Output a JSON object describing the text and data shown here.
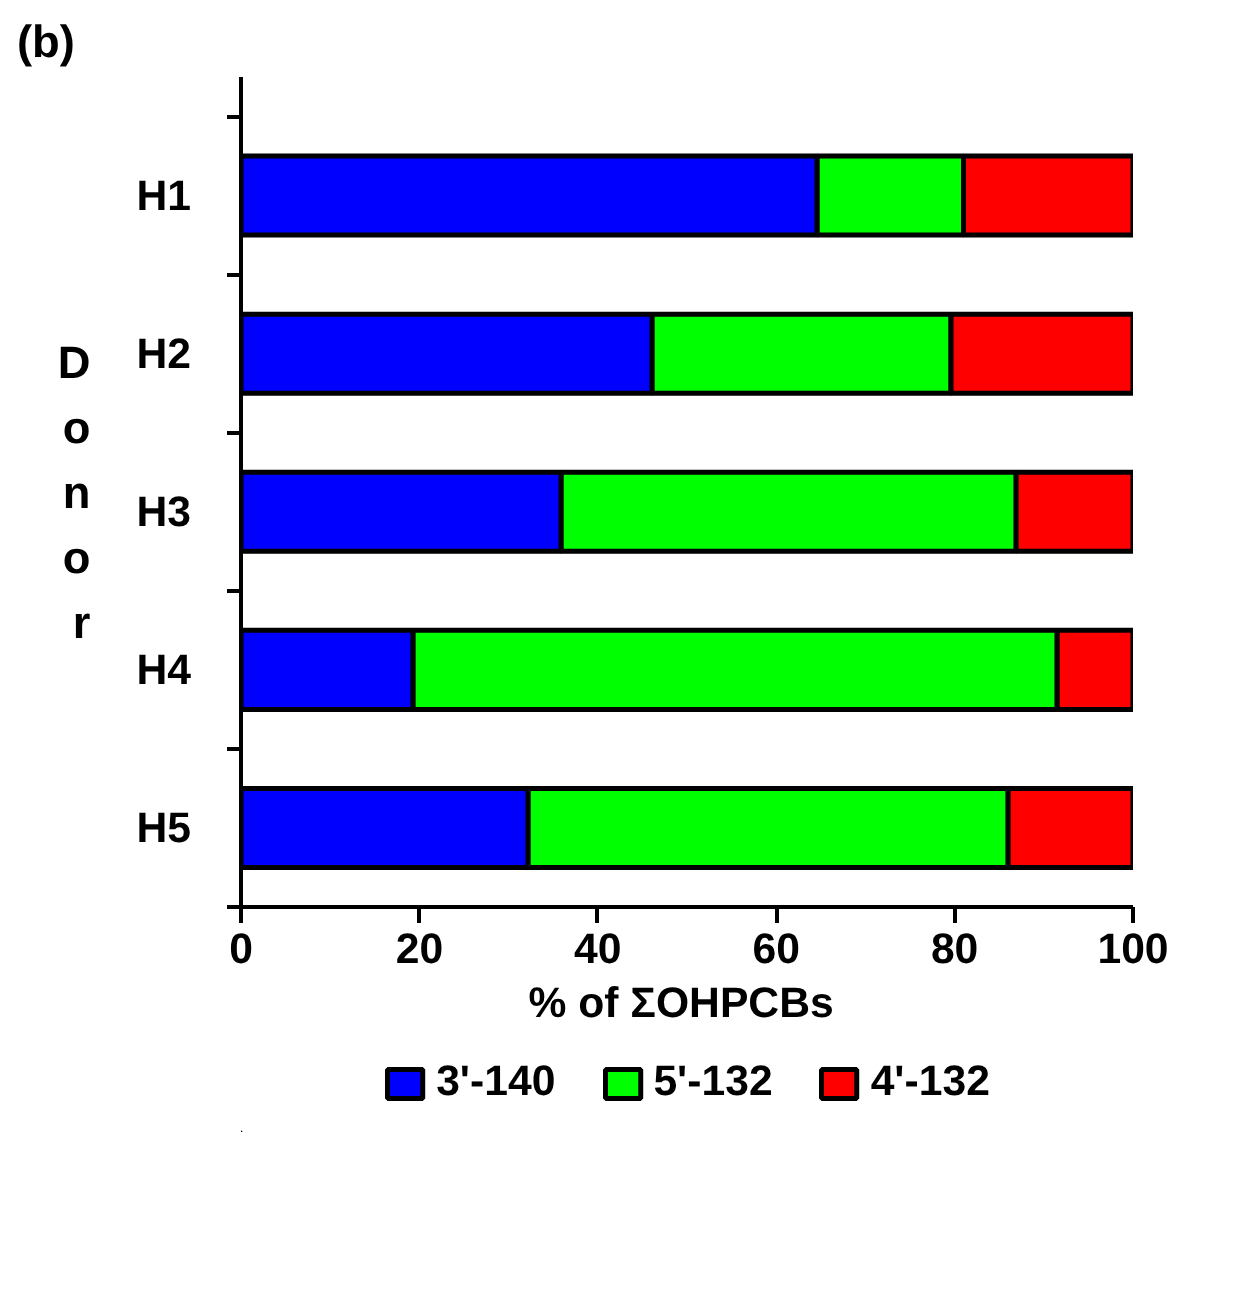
{
  "chart_data": {
    "type": "bar",
    "orientation": "horizontal",
    "stacked": true,
    "title": "(b)",
    "xlabel": "% of  ΣOHPCBs",
    "ylabel": "Donor",
    "categories": [
      "H1",
      "H2",
      "H3",
      "H4",
      "H5"
    ],
    "series": [
      {
        "name": "3'-140",
        "color": "#0000ff",
        "values": [
          64.6,
          46.1,
          35.9,
          19.3,
          32.2
        ]
      },
      {
        "name": "5'-132",
        "color": "#00ff00",
        "values": [
          16.4,
          33.5,
          51.0,
          72.2,
          53.8
        ]
      },
      {
        "name": "4'-132",
        "color": "#ff0000",
        "values": [
          19.0,
          20.4,
          13.1,
          8.5,
          14.0
        ]
      }
    ],
    "xlim": [
      0,
      100
    ],
    "xticks": [
      0,
      20,
      40,
      60,
      80,
      100
    ],
    "grid": false,
    "legend": "bottom"
  }
}
